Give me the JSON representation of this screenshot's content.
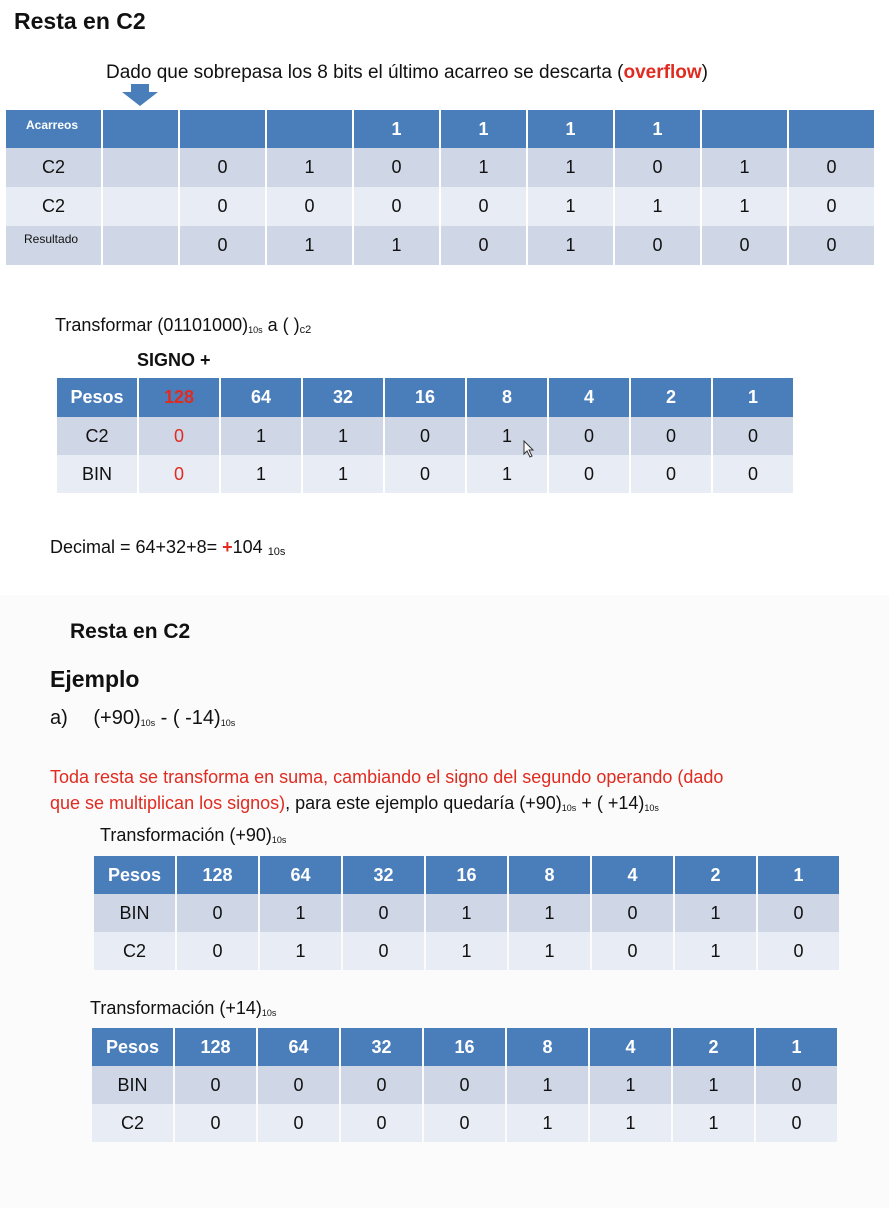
{
  "slide1": {
    "title": "Resta en C2",
    "note_pre": "Dado que sobrepasa los 8 bits el último acarreo se descarta (",
    "note_emph": "overflow",
    "note_post": ")",
    "carry_table": {
      "header_label": "Acarreos",
      "header_values": [
        "",
        "",
        "",
        "1",
        "1",
        "1",
        "1",
        "",
        ""
      ],
      "rows": [
        {
          "label": "C2",
          "values": [
            "",
            "0",
            "1",
            "0",
            "1",
            "1",
            "0",
            "1",
            "0"
          ]
        },
        {
          "label": "C2",
          "values": [
            "",
            "0",
            "0",
            "0",
            "0",
            "1",
            "1",
            "1",
            "0"
          ]
        },
        {
          "label": "Resultado",
          "values": [
            "",
            "0",
            "1",
            "1",
            "0",
            "1",
            "0",
            "0",
            "0"
          ]
        }
      ]
    },
    "transform_pre": "Transformar (01101000)",
    "transform_sub1": "10s",
    "transform_mid": " a (  )",
    "transform_sub2": "c2",
    "sign_label": "SIGNO +",
    "weights_table": {
      "header_label": "Pesos",
      "header_values": [
        "128",
        "64",
        "32",
        "16",
        "8",
        "4",
        "2",
        "1"
      ],
      "rows": [
        {
          "label": "C2",
          "values": [
            "0",
            "1",
            "1",
            "0",
            "1",
            "0",
            "0",
            "0"
          ]
        },
        {
          "label": "BIN",
          "values": [
            "0",
            "1",
            "1",
            "0",
            "1",
            "0",
            "0",
            "0"
          ]
        }
      ]
    },
    "decimal_pre": "Decimal = 64+32+8= ",
    "decimal_sign": "+",
    "decimal_value": "104 ",
    "decimal_sub": "10s"
  },
  "slide2": {
    "title": "Resta en C2",
    "example_heading": "Ejemplo",
    "example_item": "a)",
    "example_expr_a": "(+90)",
    "example_sub_a": "10s",
    "example_expr_mid": " - ( -14)",
    "example_sub_b": "10s",
    "note_red_line1": "Toda resta se transforma en suma, cambiando el signo del segundo operando (dado",
    "note_red_line2": "que se multiplican los signos)",
    "note_black_a": ", para este ejemplo quedaría (+90)",
    "note_sub_a": "10s",
    "note_black_b": " + ( +14)",
    "note_sub_b": "10s",
    "transform90_label": "Transformación (+90)",
    "transform90_sub": "10s",
    "table90": {
      "header_label": "Pesos",
      "header_values": [
        "128",
        "64",
        "32",
        "16",
        "8",
        "4",
        "2",
        "1"
      ],
      "rows": [
        {
          "label": "BIN",
          "values": [
            "0",
            "1",
            "0",
            "1",
            "1",
            "0",
            "1",
            "0"
          ]
        },
        {
          "label": "C2",
          "values": [
            "0",
            "1",
            "0",
            "1",
            "1",
            "0",
            "1",
            "0"
          ]
        }
      ]
    },
    "transform14_label": "Transformación (+14)",
    "transform14_sub": "10s",
    "table14": {
      "header_label": "Pesos",
      "header_values": [
        "128",
        "64",
        "32",
        "16",
        "8",
        "4",
        "2",
        "1"
      ],
      "rows": [
        {
          "label": "BIN",
          "values": [
            "0",
            "0",
            "0",
            "0",
            "1",
            "1",
            "1",
            "0"
          ]
        },
        {
          "label": "C2",
          "values": [
            "0",
            "0",
            "0",
            "0",
            "1",
            "1",
            "1",
            "0"
          ]
        }
      ]
    }
  },
  "colors": {
    "header_blue": "#4a7ebb",
    "row_dark": "#cfd7e6",
    "row_light": "#e8ecf4",
    "emphasis_red": "#e02b20"
  },
  "icons": {
    "arrow": "down-arrow-icon",
    "cursor": "mouse-cursor-icon"
  }
}
